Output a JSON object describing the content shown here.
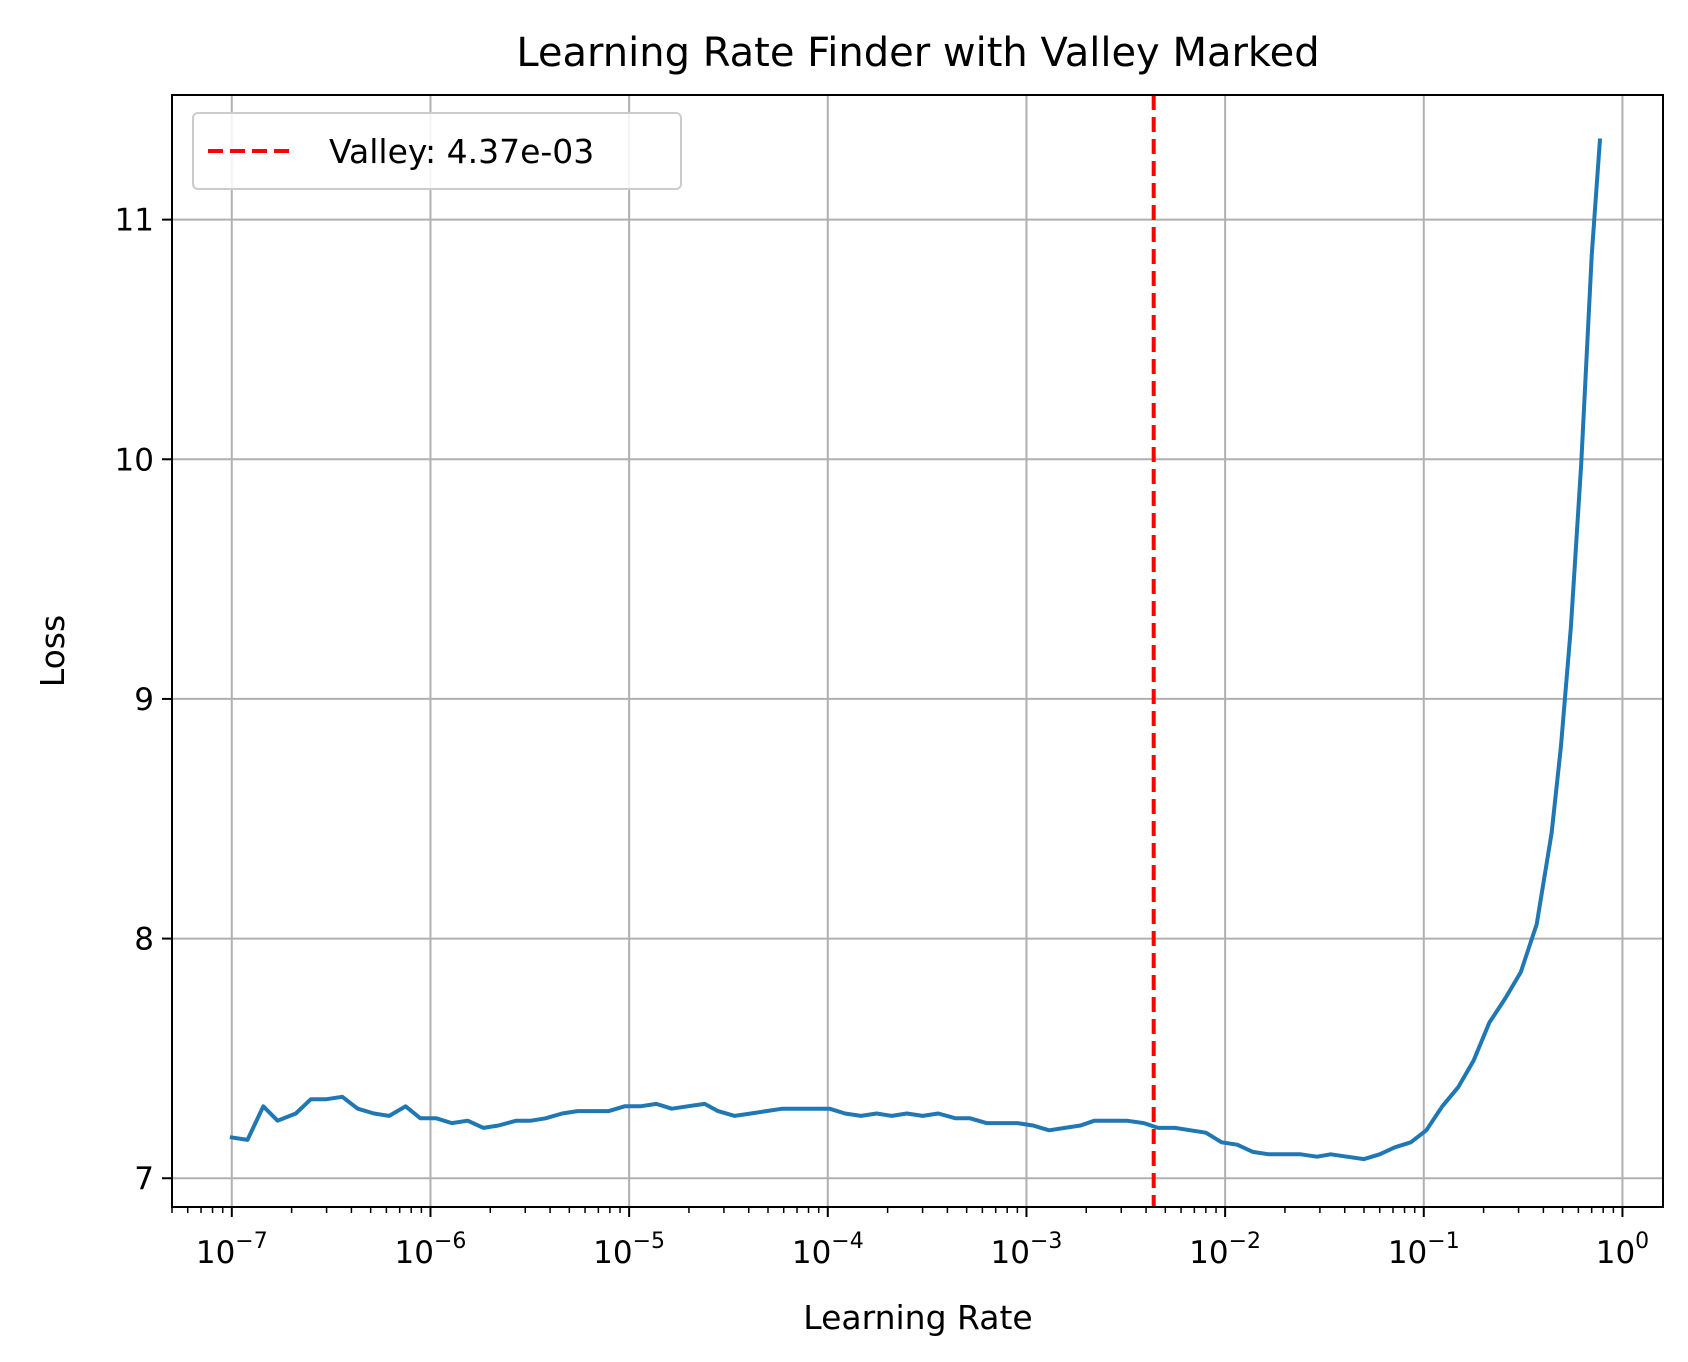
{
  "chart_data": {
    "type": "line",
    "title": "Learning Rate Finder with Valley Marked",
    "xlabel": "Learning Rate",
    "ylabel": "Loss",
    "x_scale": "log",
    "xlim": [
      5e-08,
      1.6
    ],
    "ylim": [
      6.88,
      11.52
    ],
    "grid": true,
    "legend_position": "top-left",
    "x_ticks": [
      {
        "value": 1e-07,
        "base": "10",
        "exp": "−7"
      },
      {
        "value": 1e-06,
        "base": "10",
        "exp": "−6"
      },
      {
        "value": 1e-05,
        "base": "10",
        "exp": "−5"
      },
      {
        "value": 0.0001,
        "base": "10",
        "exp": "−4"
      },
      {
        "value": 0.001,
        "base": "10",
        "exp": "−3"
      },
      {
        "value": 0.01,
        "base": "10",
        "exp": "−2"
      },
      {
        "value": 0.1,
        "base": "10",
        "exp": "−1"
      },
      {
        "value": 1,
        "base": "10",
        "exp": "0"
      }
    ],
    "y_ticks": [
      {
        "value": 7,
        "label": "7"
      },
      {
        "value": 8,
        "label": "8"
      },
      {
        "value": 9,
        "label": "9"
      },
      {
        "value": 10,
        "label": "10"
      },
      {
        "value": 11,
        "label": "11"
      }
    ],
    "series": [
      {
        "color": "#1f77b4",
        "x": [
          1e-07,
          1.2e-07,
          1.44e-07,
          1.7e-07,
          2.1e-07,
          2.5e-07,
          3e-07,
          3.6e-07,
          4.3e-07,
          5.2e-07,
          6.2e-07,
          7.5e-07,
          8.9e-07,
          1.07e-06,
          1.28e-06,
          1.54e-06,
          1.85e-06,
          2.2e-06,
          2.7e-06,
          3.2e-06,
          3.8e-06,
          4.6e-06,
          5.5e-06,
          6.6e-06,
          7.9e-06,
          9.5e-06,
          1.14e-05,
          1.37e-05,
          1.64e-05,
          1.97e-05,
          2.4e-05,
          2.8e-05,
          3.4e-05,
          4.1e-05,
          4.9e-05,
          5.9e-05,
          7.1e-05,
          8.5e-05,
          0.000102,
          0.000122,
          0.000147,
          0.000176,
          0.00021,
          0.00025,
          0.0003,
          0.00036,
          0.00044,
          0.00052,
          0.00063,
          0.00075,
          0.0009,
          0.00108,
          0.0013,
          0.00156,
          0.00187,
          0.0022,
          0.0027,
          0.0032,
          0.0039,
          0.0046,
          0.0056,
          0.0067,
          0.008,
          0.0096,
          0.0115,
          0.0138,
          0.0166,
          0.02,
          0.024,
          0.029,
          0.034,
          0.041,
          0.05,
          0.06,
          0.072,
          0.086,
          0.103,
          0.124,
          0.149,
          0.178,
          0.214,
          0.257,
          0.308,
          0.37,
          0.44,
          0.49,
          0.55,
          0.62,
          0.7,
          0.77
        ],
        "y": [
          7.17,
          7.16,
          7.3,
          7.24,
          7.27,
          7.33,
          7.33,
          7.34,
          7.29,
          7.27,
          7.26,
          7.3,
          7.25,
          7.25,
          7.23,
          7.24,
          7.21,
          7.22,
          7.24,
          7.24,
          7.25,
          7.27,
          7.28,
          7.28,
          7.28,
          7.3,
          7.3,
          7.31,
          7.29,
          7.3,
          7.31,
          7.28,
          7.26,
          7.27,
          7.28,
          7.29,
          7.29,
          7.29,
          7.29,
          7.27,
          7.26,
          7.27,
          7.26,
          7.27,
          7.26,
          7.27,
          7.25,
          7.25,
          7.23,
          7.23,
          7.23,
          7.22,
          7.2,
          7.21,
          7.22,
          7.24,
          7.24,
          7.24,
          7.23,
          7.21,
          7.21,
          7.2,
          7.19,
          7.15,
          7.14,
          7.11,
          7.1,
          7.1,
          7.1,
          7.09,
          7.1,
          7.09,
          7.08,
          7.1,
          7.13,
          7.15,
          7.2,
          7.3,
          7.38,
          7.49,
          7.65,
          7.75,
          7.86,
          8.06,
          8.44,
          8.8,
          9.3,
          9.98,
          10.85,
          11.33
        ]
      }
    ],
    "valley": {
      "x": 0.00437,
      "label": "Valley: 4.37e-03",
      "color": "#ff0000",
      "style": "dashed"
    }
  }
}
